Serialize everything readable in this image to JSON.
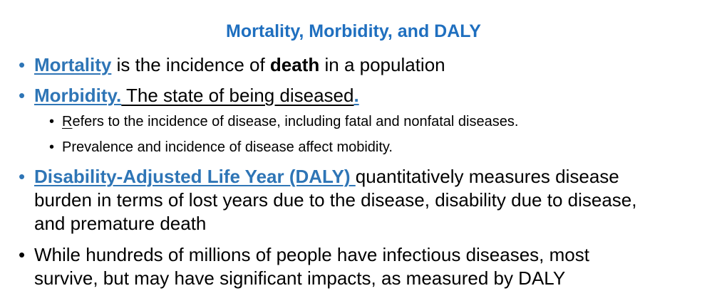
{
  "title": "Mortality, Morbidity, and DALY",
  "items": [
    {
      "term": "Mortality",
      "text_before_bold": " is the incidence of ",
      "bold": "death",
      "text_after_bold": " in a population"
    },
    {
      "term": "Morbidity.",
      "definition": " The state of being diseased",
      "trailing_period": ".",
      "subitems": [
        {
          "first_letter": "R",
          "rest": "efers to the incidence of disease, including fatal and nonfatal diseases."
        },
        {
          "text": "Prevalence and incidence of disease affect mobidity."
        }
      ]
    },
    {
      "term": "Disability-Adjusted Life Year (DALY) ",
      "line1": "quantitatively measures disease",
      "line2": "burden in terms of lost years due to the disease, disability due to disease,",
      "line3": "and premature death"
    },
    {
      "line1": "While hundreds of millions of people have infectious diseases, most",
      "line2": "survive, but may have significant impacts, as measured by DALY"
    }
  ],
  "bullet_glyph": "•",
  "colors": {
    "title": "#1F6FBF",
    "term": "#2E75B6",
    "text": "#000000"
  }
}
